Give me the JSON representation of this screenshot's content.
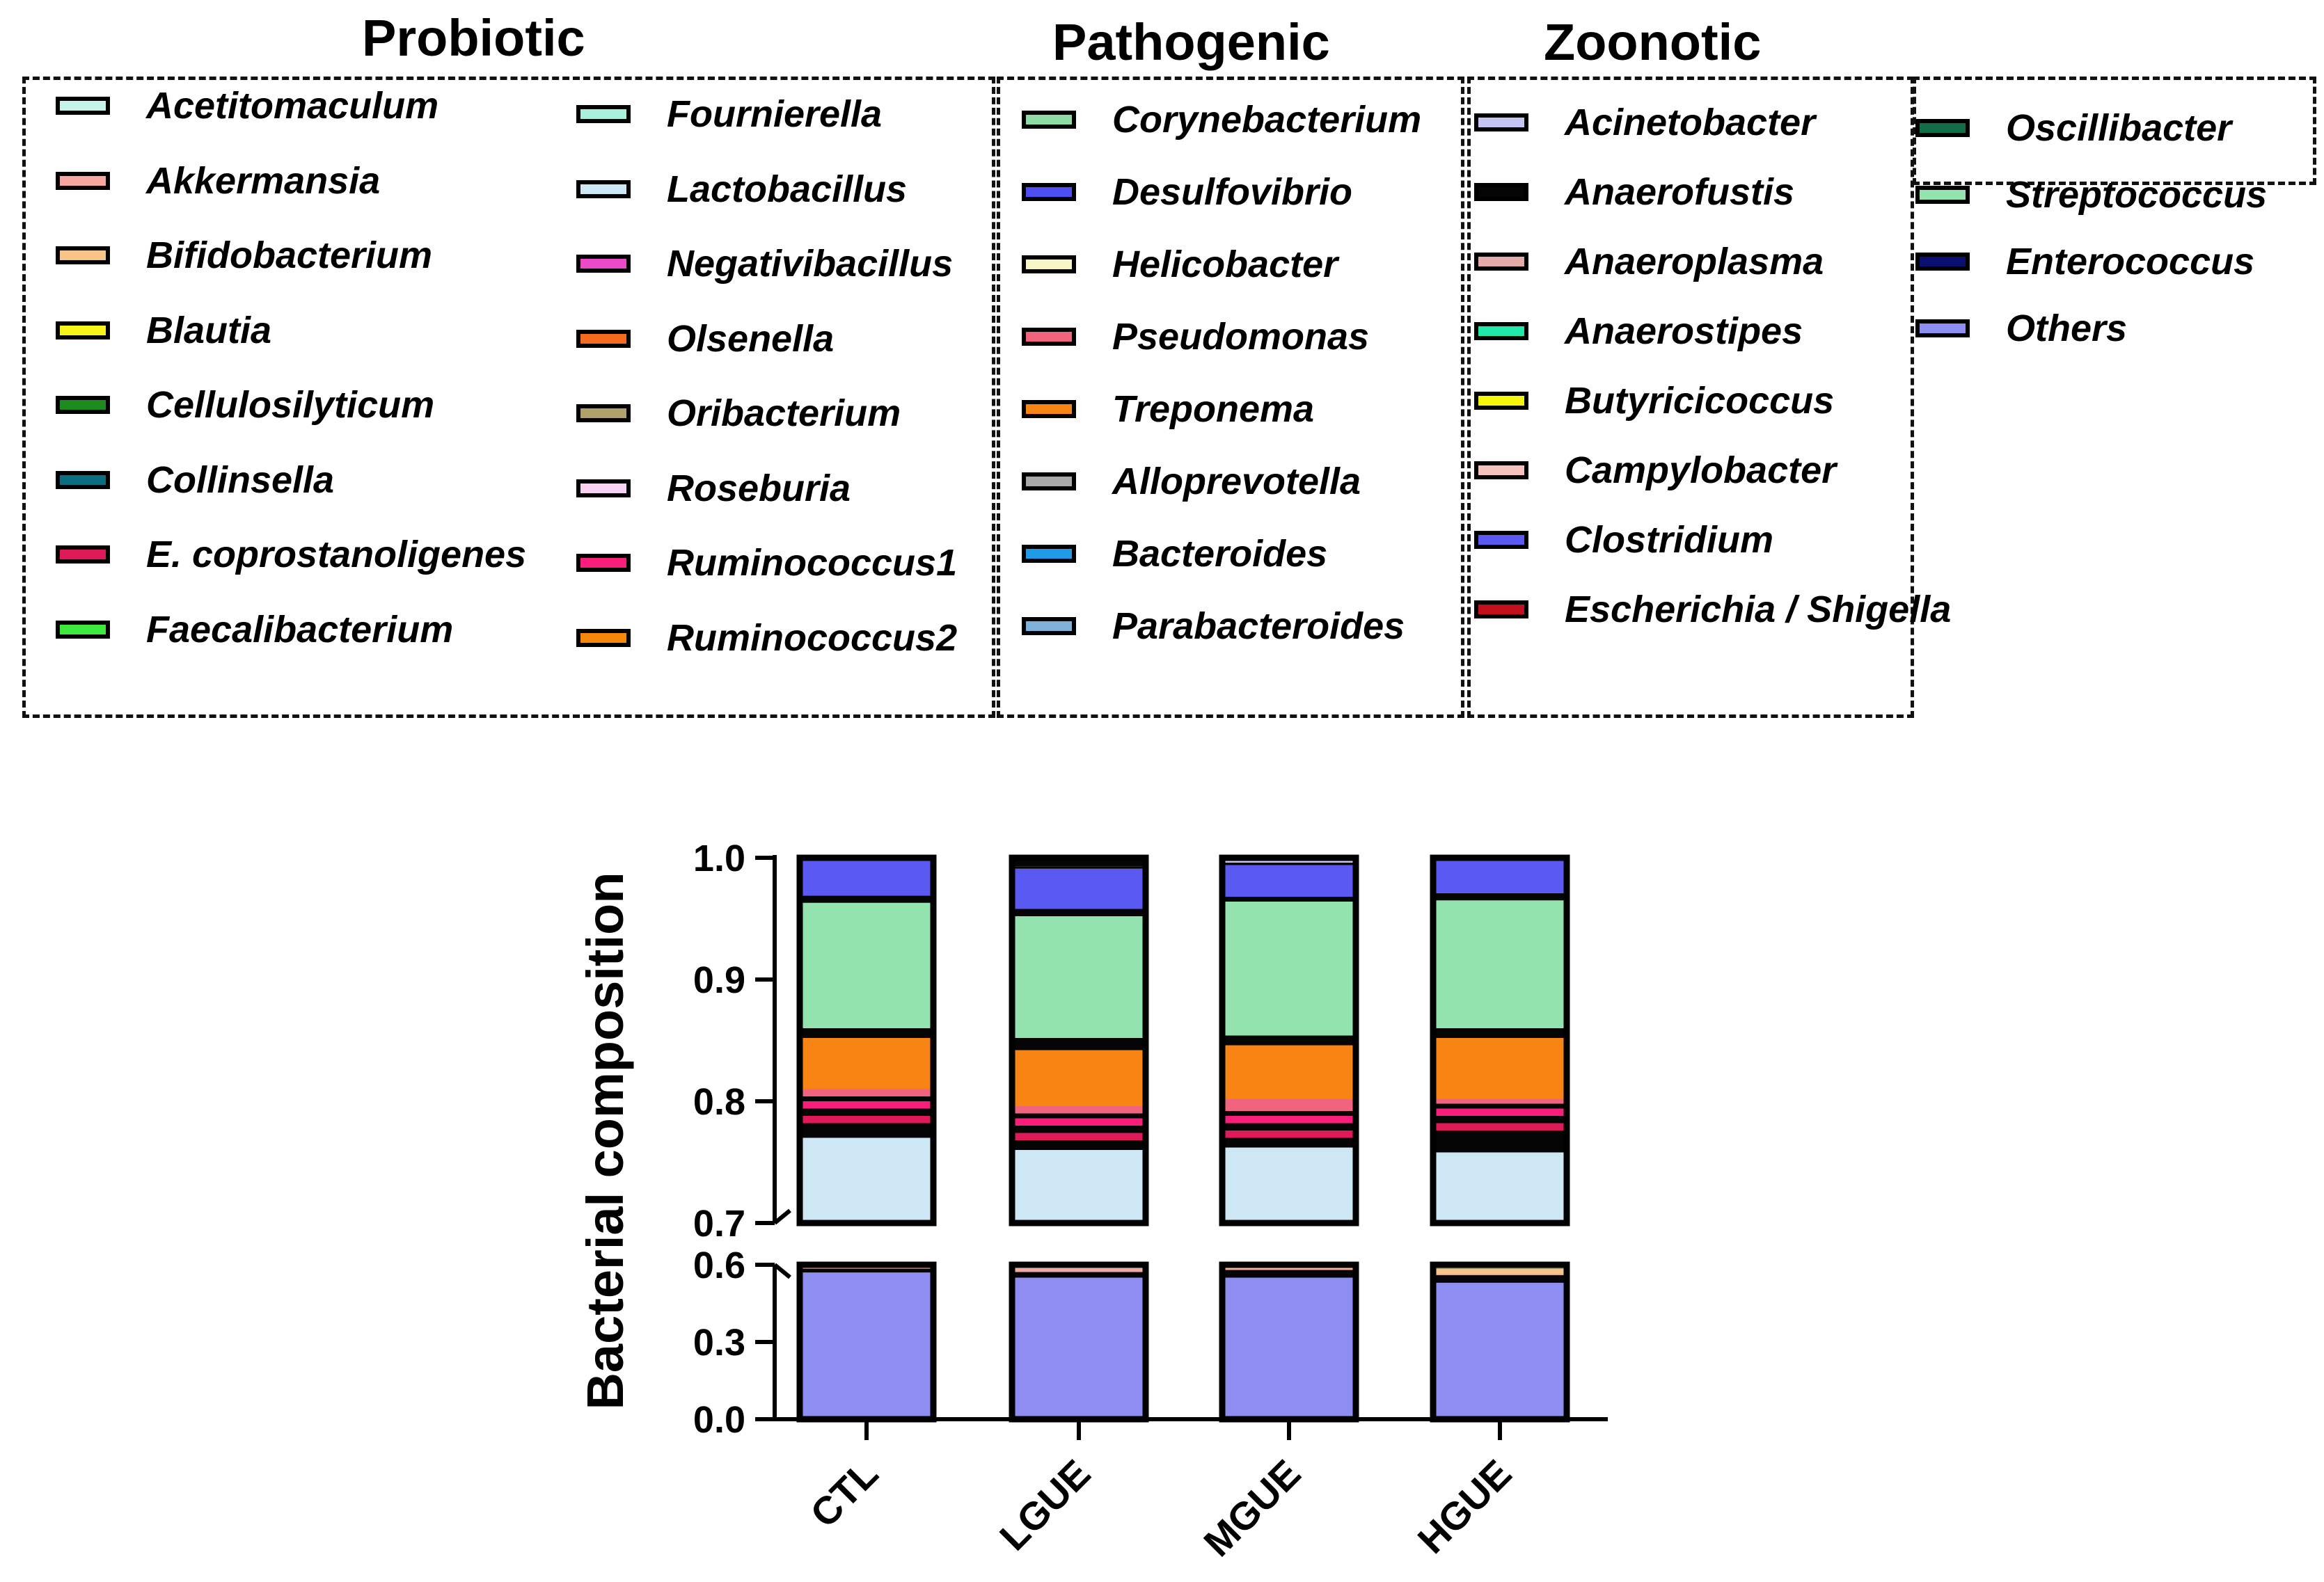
{
  "legend_groups": [
    {
      "title": "Probiotic",
      "items": [
        {
          "label": "Acetitomaculum",
          "color": "#c6f3ea"
        },
        {
          "label": "Akkermansia",
          "color": "#f7a79f"
        },
        {
          "label": "Bifidobacterium",
          "color": "#f9c487"
        },
        {
          "label": "Blautia",
          "color": "#f5f51a"
        },
        {
          "label": "Cellulosilyticum",
          "color": "#1c8a1c"
        },
        {
          "label": "Collinsella",
          "color": "#0a6e80"
        },
        {
          "label": "E. coprostanoligenes",
          "color": "#e01a59"
        },
        {
          "label": "Faecalibacterium",
          "color": "#3dea3d"
        },
        {
          "label": "Fournierella",
          "color": "#a8f0dc"
        },
        {
          "label": "Lactobacillus",
          "color": "#cde7f4"
        },
        {
          "label": "Negativibacillus",
          "color": "#ec4ac8"
        },
        {
          "label": "Olsenella",
          "color": "#f46a1f"
        },
        {
          "label": "Oribacterium",
          "color": "#b0a06a"
        },
        {
          "label": "Roseburia",
          "color": "#f8d2f2"
        },
        {
          "label": "Ruminococcus1",
          "color": "#f81e7a"
        },
        {
          "label": "Ruminococcus2",
          "color": "#f7870b"
        }
      ]
    },
    {
      "title": "Pathogenic",
      "items": [
        {
          "label": "Corynebacterium",
          "color": "#8fdba4"
        },
        {
          "label": "Desulfovibrio",
          "color": "#4c4ef2"
        },
        {
          "label": "Helicobacter",
          "color": "#f7f5c6"
        },
        {
          "label": "Pseudomonas",
          "color": "#f2637d"
        },
        {
          "label": "Treponema",
          "color": "#f88414"
        },
        {
          "label": "Alloprevotella",
          "color": "#a8a8a8"
        },
        {
          "label": "Bacteroides",
          "color": "#1f9be8"
        },
        {
          "label": "Parabacteroides",
          "color": "#7fb2da"
        }
      ]
    },
    {
      "title": "Zoonotic",
      "items": [
        {
          "label": "Acinetobacter",
          "color": "#c6c4f2"
        },
        {
          "label": "Anaerofustis",
          "color": "#050505"
        },
        {
          "label": "Anaeroplasma",
          "color": "#e6aaa8"
        },
        {
          "label": "Anaerostipes",
          "color": "#1fe8a8"
        },
        {
          "label": "Butyricicoccus",
          "color": "#f5f50b"
        },
        {
          "label": "Campylobacter",
          "color": "#f7c2bb"
        },
        {
          "label": "Clostridium",
          "color": "#5a5af2"
        },
        {
          "label": "Escherichia / Shigella",
          "color": "#c4101e"
        }
      ]
    },
    {
      "title": "",
      "items": [
        {
          "label": "Oscillibacter",
          "color": "#126e46"
        },
        {
          "label": "Streptococcus",
          "color": "#93e3ae"
        },
        {
          "label": "Enterococcus",
          "color": "#0a1070"
        },
        {
          "label": "Others",
          "color": "#8e8ef2"
        }
      ]
    }
  ],
  "chart_data": {
    "type": "bar",
    "stacked": true,
    "broken_y_axis": true,
    "ylabel": "Bacterial composition",
    "xlabel": "",
    "categories": [
      "CTL",
      "LGUE",
      "MGUE",
      "HGUE"
    ],
    "y_segments": [
      {
        "range": [
          0.0,
          0.6
        ],
        "ticks": [
          "0.0",
          "0.3",
          "0.6"
        ]
      },
      {
        "range": [
          0.7,
          1.0
        ],
        "ticks": [
          "0.7",
          "0.8",
          "0.9",
          "1.0"
        ]
      }
    ],
    "series": [
      {
        "name": "Others",
        "color": "#8e8ef2",
        "values": [
          0.57,
          0.55,
          0.55,
          0.53
        ]
      },
      {
        "name": "Anaerofustis",
        "color": "#050505",
        "values": [
          0.015,
          0.022,
          0.03,
          0.03
        ]
      },
      {
        "name": "Akkermansia",
        "color": "#f7a79f",
        "values": [
          0.015,
          0.015,
          0.005,
          0.005
        ]
      },
      {
        "name": "Bifidobacterium",
        "color": "#f9c487",
        "values": [
          0.0,
          0.0,
          0.005,
          0.018
        ]
      },
      {
        "name": "Oribacterium",
        "color": "#b0a06a",
        "values": [
          0.0,
          0.0,
          0.0,
          0.005
        ]
      },
      {
        "name": "Lactobacillus",
        "color": "#cde7f4",
        "values": [
          0.17,
          0.173,
          0.172,
          0.17
        ]
      },
      {
        "name": "Escherichia / Shigella",
        "color": "#050505",
        "values": [
          0.012,
          0.008,
          0.008,
          0.018
        ]
      },
      {
        "name": "E. coprostanoligenes",
        "color": "#e01a59",
        "values": [
          0.006,
          0.006,
          0.006,
          0.006
        ]
      },
      {
        "name": "Anaerostipes",
        "color": "#050505",
        "values": [
          0.006,
          0.006,
          0.006,
          0.006
        ]
      },
      {
        "name": "Ruminococcus1",
        "color": "#f81e7a",
        "values": [
          0.006,
          0.006,
          0.006,
          0.006
        ]
      },
      {
        "name": "Negativibacillus",
        "color": "#050505",
        "values": [
          0.004,
          0.004,
          0.004,
          0.004
        ]
      },
      {
        "name": "Pseudomonas",
        "color": "#f2637d",
        "values": [
          0.006,
          0.006,
          0.01,
          0.004
        ]
      },
      {
        "name": "Treponema",
        "color": "#f88414",
        "values": [
          0.042,
          0.046,
          0.044,
          0.05
        ]
      },
      {
        "name": "Bacteroides",
        "color": "#050505",
        "values": [
          0.008,
          0.01,
          0.008,
          0.008
        ]
      },
      {
        "name": "Streptococcus",
        "color": "#93e3ae",
        "values": [
          0.103,
          0.1,
          0.11,
          0.105
        ]
      },
      {
        "name": "Corynebacterium",
        "color": "#050505",
        "values": [
          0.006,
          0.006,
          0.004,
          0.006
        ]
      },
      {
        "name": "Clostridium",
        "color": "#5a5af2",
        "values": [
          0.04,
          0.033,
          0.026,
          0.032
        ]
      },
      {
        "name": "Helicobacter",
        "color": "#050505",
        "values": [
          0.002,
          0.002,
          0.002,
          0.002
        ]
      },
      {
        "name": "Acinetobacter",
        "color": "#c6c4f2",
        "values": [
          0.0,
          0.0,
          0.004,
          0.0
        ]
      },
      {
        "name": "Anaerofustis (top)",
        "color": "#050505",
        "values": [
          0.0,
          0.005,
          0.002,
          0.0
        ]
      },
      {
        "name": "Oscillibacter",
        "color": "#126e46",
        "values": [
          0.003,
          0.002,
          0.008,
          0.005
        ]
      }
    ]
  }
}
